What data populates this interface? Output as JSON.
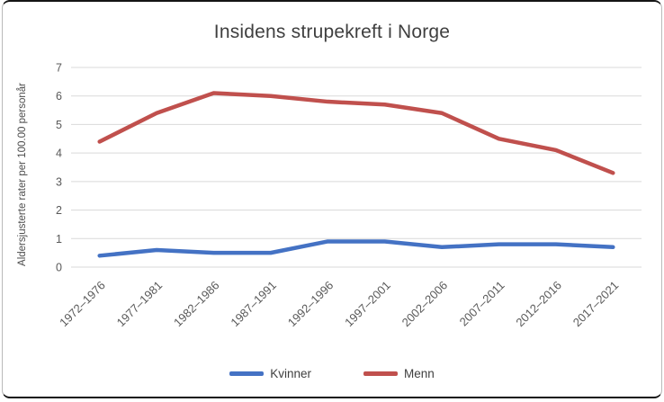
{
  "chart_data": {
    "type": "line",
    "title": "Insidens strupekreft i Norge",
    "ylabel": "Aldersjusterte rater per 100.00 personår",
    "xlabel": "",
    "categories": [
      "1972–1976",
      "1977–1981",
      "1982–1986",
      "1987–1991",
      "1992–1996",
      "1997–2001",
      "2002–2006",
      "2007–2011",
      "2012–2016",
      "2017–2021"
    ],
    "series": [
      {
        "name": "Kvinner",
        "color": "#4472C4",
        "values": [
          0.4,
          0.6,
          0.5,
          0.5,
          0.9,
          0.9,
          0.7,
          0.8,
          0.8,
          0.7
        ]
      },
      {
        "name": "Menn",
        "color": "#C0504D",
        "values": [
          4.4,
          5.4,
          6.1,
          6.0,
          5.8,
          5.7,
          5.4,
          4.5,
          4.1,
          3.3
        ]
      }
    ],
    "ylim": [
      0,
      7
    ],
    "yticks": [
      0,
      1,
      2,
      3,
      4,
      5,
      6,
      7
    ],
    "grid": true,
    "legend_position": "bottom",
    "gridline_color": "#d9d9d9",
    "axis_text_color": "#595959",
    "title_color": "#3f3f3f"
  }
}
